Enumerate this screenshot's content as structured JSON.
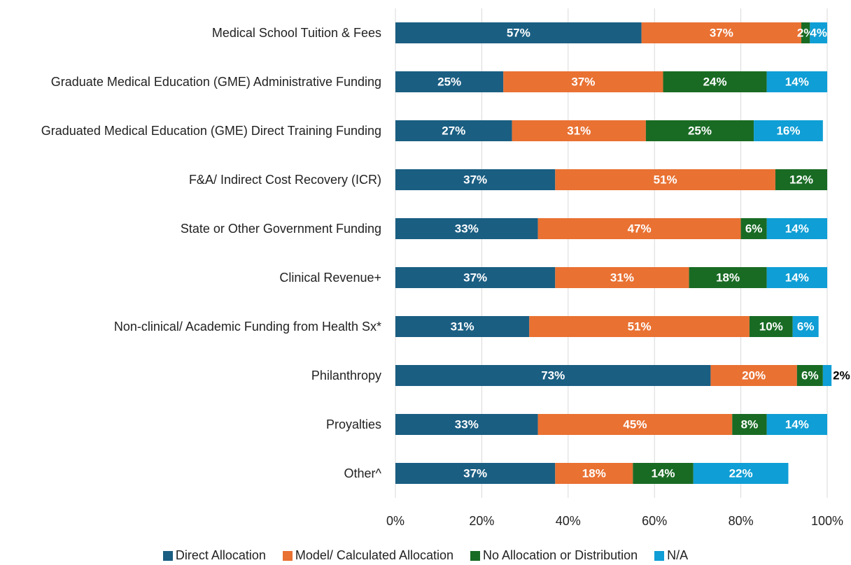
{
  "chart_data": {
    "type": "stacked-bar-horizontal",
    "categories": [
      "Medical School Tuition & Fees",
      "Graduate Medical Education (GME) Administrative Funding",
      "Graduated Medical Education (GME) Direct Training Funding",
      "F&A/ Indirect Cost Recovery (ICR)",
      "State or Other Government Funding",
      "Clinical Revenue+",
      "Non-clinical/ Academic Funding from Health Sx*",
      "Philanthropy",
      "Proyalties",
      "Other^"
    ],
    "series": [
      {
        "name": "Direct Allocation",
        "color": "#1a5e82",
        "values": [
          57,
          25,
          27,
          37,
          33,
          37,
          31,
          73,
          33,
          37
        ]
      },
      {
        "name": "Model/ Calculated Allocation",
        "color": "#e97132",
        "values": [
          37,
          37,
          31,
          51,
          47,
          31,
          51,
          20,
          45,
          18
        ]
      },
      {
        "name": "No Allocation or Distribution",
        "color": "#196b24",
        "values": [
          2,
          24,
          25,
          12,
          6,
          18,
          10,
          6,
          8,
          14
        ]
      },
      {
        "name": "N/A",
        "color": "#0f9ed5",
        "values": [
          4,
          14,
          16,
          null,
          14,
          14,
          6,
          2,
          14,
          22
        ]
      }
    ],
    "value_labels": [
      [
        "57%",
        "25%",
        "27%",
        "37%",
        "33%",
        "37%",
        "31%",
        "73%",
        "33%",
        "37%"
      ],
      [
        "37%",
        "37%",
        "31%",
        "51%",
        "47%",
        "31%",
        "51%",
        "20%",
        "45%",
        "18%"
      ],
      [
        "2%",
        "24%",
        "25%",
        "12%",
        "6%",
        "18%",
        "10%",
        "6%",
        "8%",
        "14%"
      ],
      [
        "4%",
        "14%",
        "16%",
        null,
        "14%",
        "14%",
        "6%",
        "2%",
        "14%",
        "22%"
      ]
    ],
    "xlim": [
      0,
      100
    ],
    "xticks": [
      {
        "value": 0,
        "label": "0%"
      },
      {
        "value": 20,
        "label": "20%"
      },
      {
        "value": 40,
        "label": "40%"
      },
      {
        "value": 60,
        "label": "60%"
      },
      {
        "value": 80,
        "label": "80%"
      },
      {
        "value": 100,
        "label": "100%"
      }
    ],
    "grid": true,
    "legend": "bottom"
  }
}
